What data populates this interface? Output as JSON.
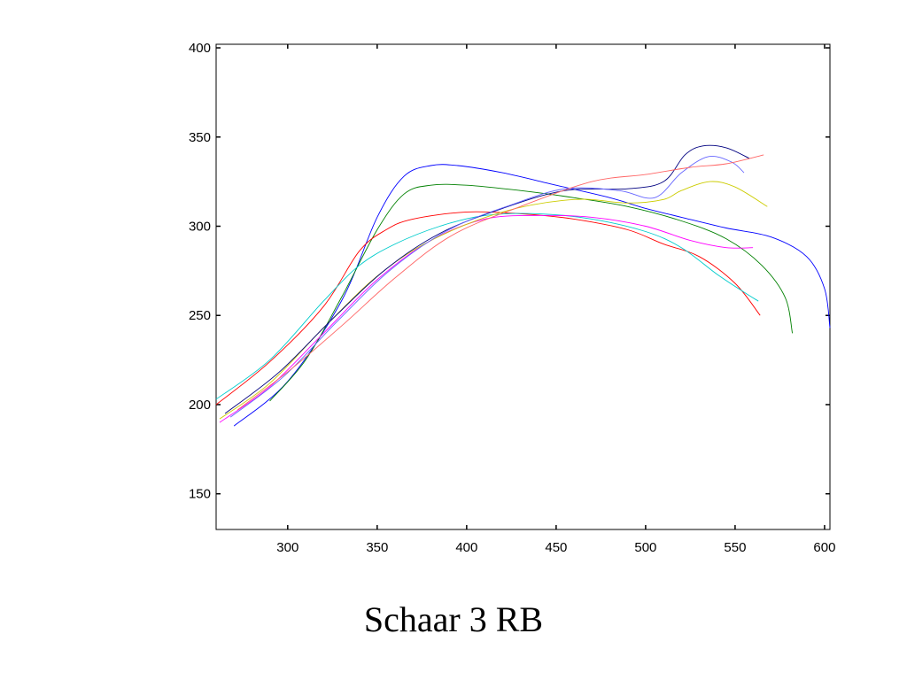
{
  "caption": "Schaar 3 RB",
  "chart_data": {
    "type": "line",
    "title": "",
    "xlabel": "",
    "ylabel": "",
    "xlim": [
      260,
      603
    ],
    "ylim": [
      130,
      402
    ],
    "xticks": [
      300,
      350,
      400,
      450,
      500,
      550,
      600
    ],
    "yticks": [
      150,
      200,
      250,
      300,
      350,
      400
    ],
    "grid": false,
    "legend": "none",
    "series": [
      {
        "color": "#0000ff",
        "points": [
          [
            270,
            188
          ],
          [
            300,
            213
          ],
          [
            330,
            258
          ],
          [
            350,
            305
          ],
          [
            365,
            328
          ],
          [
            380,
            334
          ],
          [
            395,
            334
          ],
          [
            420,
            330
          ],
          [
            450,
            323
          ],
          [
            480,
            316
          ],
          [
            500,
            310
          ],
          [
            520,
            305
          ],
          [
            545,
            299
          ],
          [
            570,
            294
          ],
          [
            590,
            283
          ],
          [
            600,
            265
          ],
          [
            603,
            243
          ]
        ]
      },
      {
        "color": "#008000",
        "points": [
          [
            290,
            202
          ],
          [
            310,
            225
          ],
          [
            330,
            260
          ],
          [
            350,
            298
          ],
          [
            365,
            318
          ],
          [
            380,
            323
          ],
          [
            400,
            323
          ],
          [
            430,
            320
          ],
          [
            460,
            316
          ],
          [
            490,
            311
          ],
          [
            520,
            303
          ],
          [
            545,
            293
          ],
          [
            565,
            278
          ],
          [
            578,
            260
          ],
          [
            582,
            240
          ]
        ]
      },
      {
        "color": "#ff0000",
        "points": [
          [
            260,
            200
          ],
          [
            290,
            224
          ],
          [
            320,
            255
          ],
          [
            340,
            286
          ],
          [
            355,
            298
          ],
          [
            370,
            304
          ],
          [
            400,
            308
          ],
          [
            430,
            307
          ],
          [
            460,
            304
          ],
          [
            490,
            298
          ],
          [
            510,
            290
          ],
          [
            530,
            283
          ],
          [
            550,
            268
          ],
          [
            564,
            250
          ]
        ]
      },
      {
        "color": "#00cccc",
        "points": [
          [
            260,
            203
          ],
          [
            290,
            225
          ],
          [
            320,
            258
          ],
          [
            340,
            278
          ],
          [
            360,
            290
          ],
          [
            385,
            300
          ],
          [
            410,
            306
          ],
          [
            440,
            307
          ],
          [
            470,
            304
          ],
          [
            500,
            297
          ],
          [
            520,
            288
          ],
          [
            540,
            273
          ],
          [
            555,
            263
          ],
          [
            563,
            258
          ]
        ]
      },
      {
        "color": "#ff00ff",
        "points": [
          [
            262,
            190
          ],
          [
            290,
            210
          ],
          [
            320,
            240
          ],
          [
            350,
            270
          ],
          [
            380,
            292
          ],
          [
            410,
            304
          ],
          [
            440,
            306
          ],
          [
            470,
            305
          ],
          [
            500,
            300
          ],
          [
            525,
            292
          ],
          [
            545,
            288
          ],
          [
            560,
            288
          ]
        ]
      },
      {
        "color": "#cccc00",
        "points": [
          [
            262,
            192
          ],
          [
            290,
            212
          ],
          [
            320,
            243
          ],
          [
            350,
            272
          ],
          [
            380,
            292
          ],
          [
            420,
            308
          ],
          [
            460,
            315
          ],
          [
            490,
            313
          ],
          [
            510,
            315
          ],
          [
            520,
            320
          ],
          [
            536,
            325
          ],
          [
            550,
            322
          ],
          [
            568,
            311
          ]
        ]
      },
      {
        "color": "#000080",
        "points": [
          [
            265,
            195
          ],
          [
            295,
            218
          ],
          [
            325,
            248
          ],
          [
            355,
            276
          ],
          [
            385,
            296
          ],
          [
            420,
            310
          ],
          [
            455,
            320
          ],
          [
            490,
            321
          ],
          [
            510,
            325
          ],
          [
            522,
            340
          ],
          [
            532,
            345
          ],
          [
            545,
            344
          ],
          [
            558,
            338
          ]
        ]
      },
      {
        "color": "#6666ff",
        "points": [
          [
            268,
            193
          ],
          [
            298,
            216
          ],
          [
            328,
            247
          ],
          [
            358,
            276
          ],
          [
            390,
            298
          ],
          [
            425,
            312
          ],
          [
            455,
            321
          ],
          [
            485,
            320
          ],
          [
            505,
            316
          ],
          [
            520,
            330
          ],
          [
            535,
            339
          ],
          [
            548,
            336
          ],
          [
            555,
            330
          ]
        ]
      },
      {
        "color": "#ff6666",
        "points": [
          [
            272,
            197
          ],
          [
            302,
            220
          ],
          [
            330,
            244
          ],
          [
            360,
            271
          ],
          [
            392,
            295
          ],
          [
            430,
            311
          ],
          [
            470,
            325
          ],
          [
            500,
            329
          ],
          [
            525,
            333
          ],
          [
            545,
            335
          ],
          [
            566,
            340
          ]
        ]
      }
    ]
  }
}
